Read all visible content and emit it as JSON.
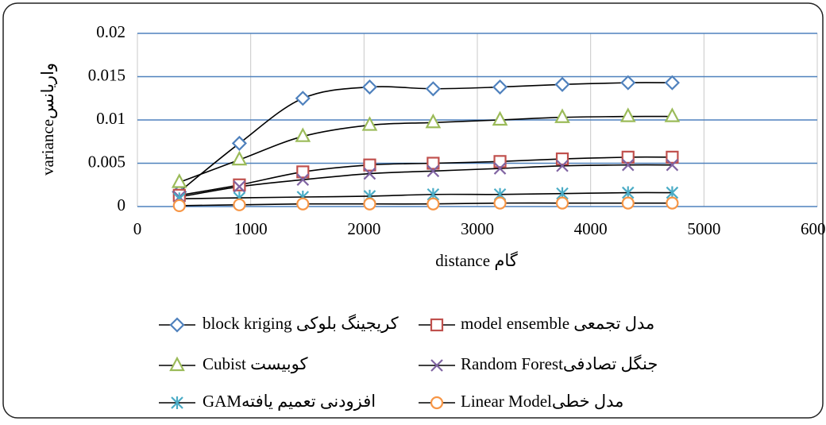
{
  "chart_data": {
    "type": "scatter-smooth",
    "x_label": "distance گام",
    "y_label": "varianceواریانس",
    "x": [
      370,
      900,
      1460,
      2050,
      2610,
      3200,
      3750,
      4330,
      4720
    ],
    "xlim": [
      0,
      6000
    ],
    "xticks": [
      0,
      1000,
      2000,
      3000,
      4000,
      5000,
      6000
    ],
    "ylim": [
      0,
      0.02
    ],
    "yticks": [
      0,
      0.005,
      0.01,
      0.015,
      0.02
    ],
    "grid": true,
    "line_color": "#000000",
    "legend": "bottom",
    "series": [
      {
        "name": "block kriging کریجینگ بلوکی",
        "color": "#4f81bd",
        "marker": "diamond",
        "values": [
          0.0017,
          0.0073,
          0.0125,
          0.0138,
          0.0136,
          0.0138,
          0.0141,
          0.0143,
          0.0143
        ]
      },
      {
        "name": "model ensemble مدل تجمعی",
        "color": "#c0504d",
        "marker": "square",
        "values": [
          0.0013,
          0.0025,
          0.004,
          0.0048,
          0.005,
          0.0052,
          0.0055,
          0.0057,
          0.0057
        ]
      },
      {
        "name": "Cubist کوبیست",
        "color": "#9bbb59",
        "marker": "triangle",
        "values": [
          0.0028,
          0.0054,
          0.0081,
          0.0094,
          0.0097,
          0.01,
          0.0103,
          0.0104,
          0.0104
        ]
      },
      {
        "name": "Random Forestجنگل تصادفی",
        "color": "#8064a2",
        "marker": "x",
        "values": [
          0.0011,
          0.0023,
          0.0031,
          0.0038,
          0.0041,
          0.0044,
          0.0047,
          0.0048,
          0.0048
        ]
      },
      {
        "name": "GAMافزودنی تعمیم یافته",
        "color": "#4bacc6",
        "marker": "star",
        "values": [
          0.0009,
          0.001,
          0.0011,
          0.0012,
          0.0014,
          0.0014,
          0.0015,
          0.0016,
          0.0016
        ]
      },
      {
        "name": "Linear Modelمدل خطی",
        "color": "#f79646",
        "marker": "circle",
        "values": [
          0.0001,
          0.0002,
          0.0003,
          0.0003,
          0.0003,
          0.0004,
          0.0004,
          0.0004,
          0.0004
        ]
      }
    ]
  }
}
